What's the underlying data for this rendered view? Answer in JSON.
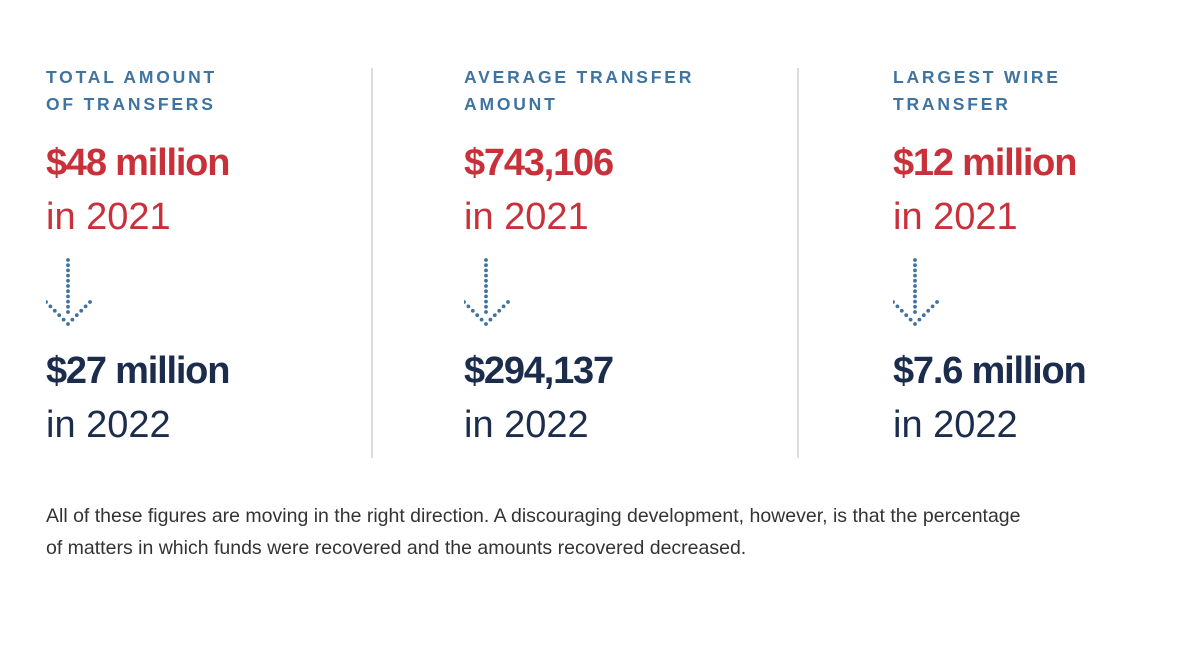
{
  "colors": {
    "label_blue": "#3f73a0",
    "value_red": "#c8313a",
    "value_navy": "#1b2c4c",
    "divider_gray": "#dcdcdc",
    "arrow_dots": "#3f73a0"
  },
  "stats": [
    {
      "label_line1": "TOTAL AMOUNT",
      "label_line2": "OF TRANSFERS",
      "before_value": "$48 million",
      "before_year": "in 2021",
      "after_value": "$27 million",
      "after_year": "in 2022"
    },
    {
      "label_line1": "AVERAGE TRANSFER",
      "label_line2": "AMOUNT",
      "before_value": "$743,106",
      "before_year": "in 2021",
      "after_value": "$294,137",
      "after_year": "in 2022"
    },
    {
      "label_line1": "LARGEST WIRE",
      "label_line2": "TRANSFER",
      "before_value": "$12 million",
      "before_year": "in 2021",
      "after_value": "$7.6 million",
      "after_year": "in 2022"
    }
  ],
  "footnote": {
    "line1": "All of these figures are moving in the right direction. A discouraging development, however, is that the percentage",
    "line2": "of matters in which funds were recovered and the amounts recovered decreased."
  },
  "icons": [
    "dotted-down-arrow-icon"
  ]
}
